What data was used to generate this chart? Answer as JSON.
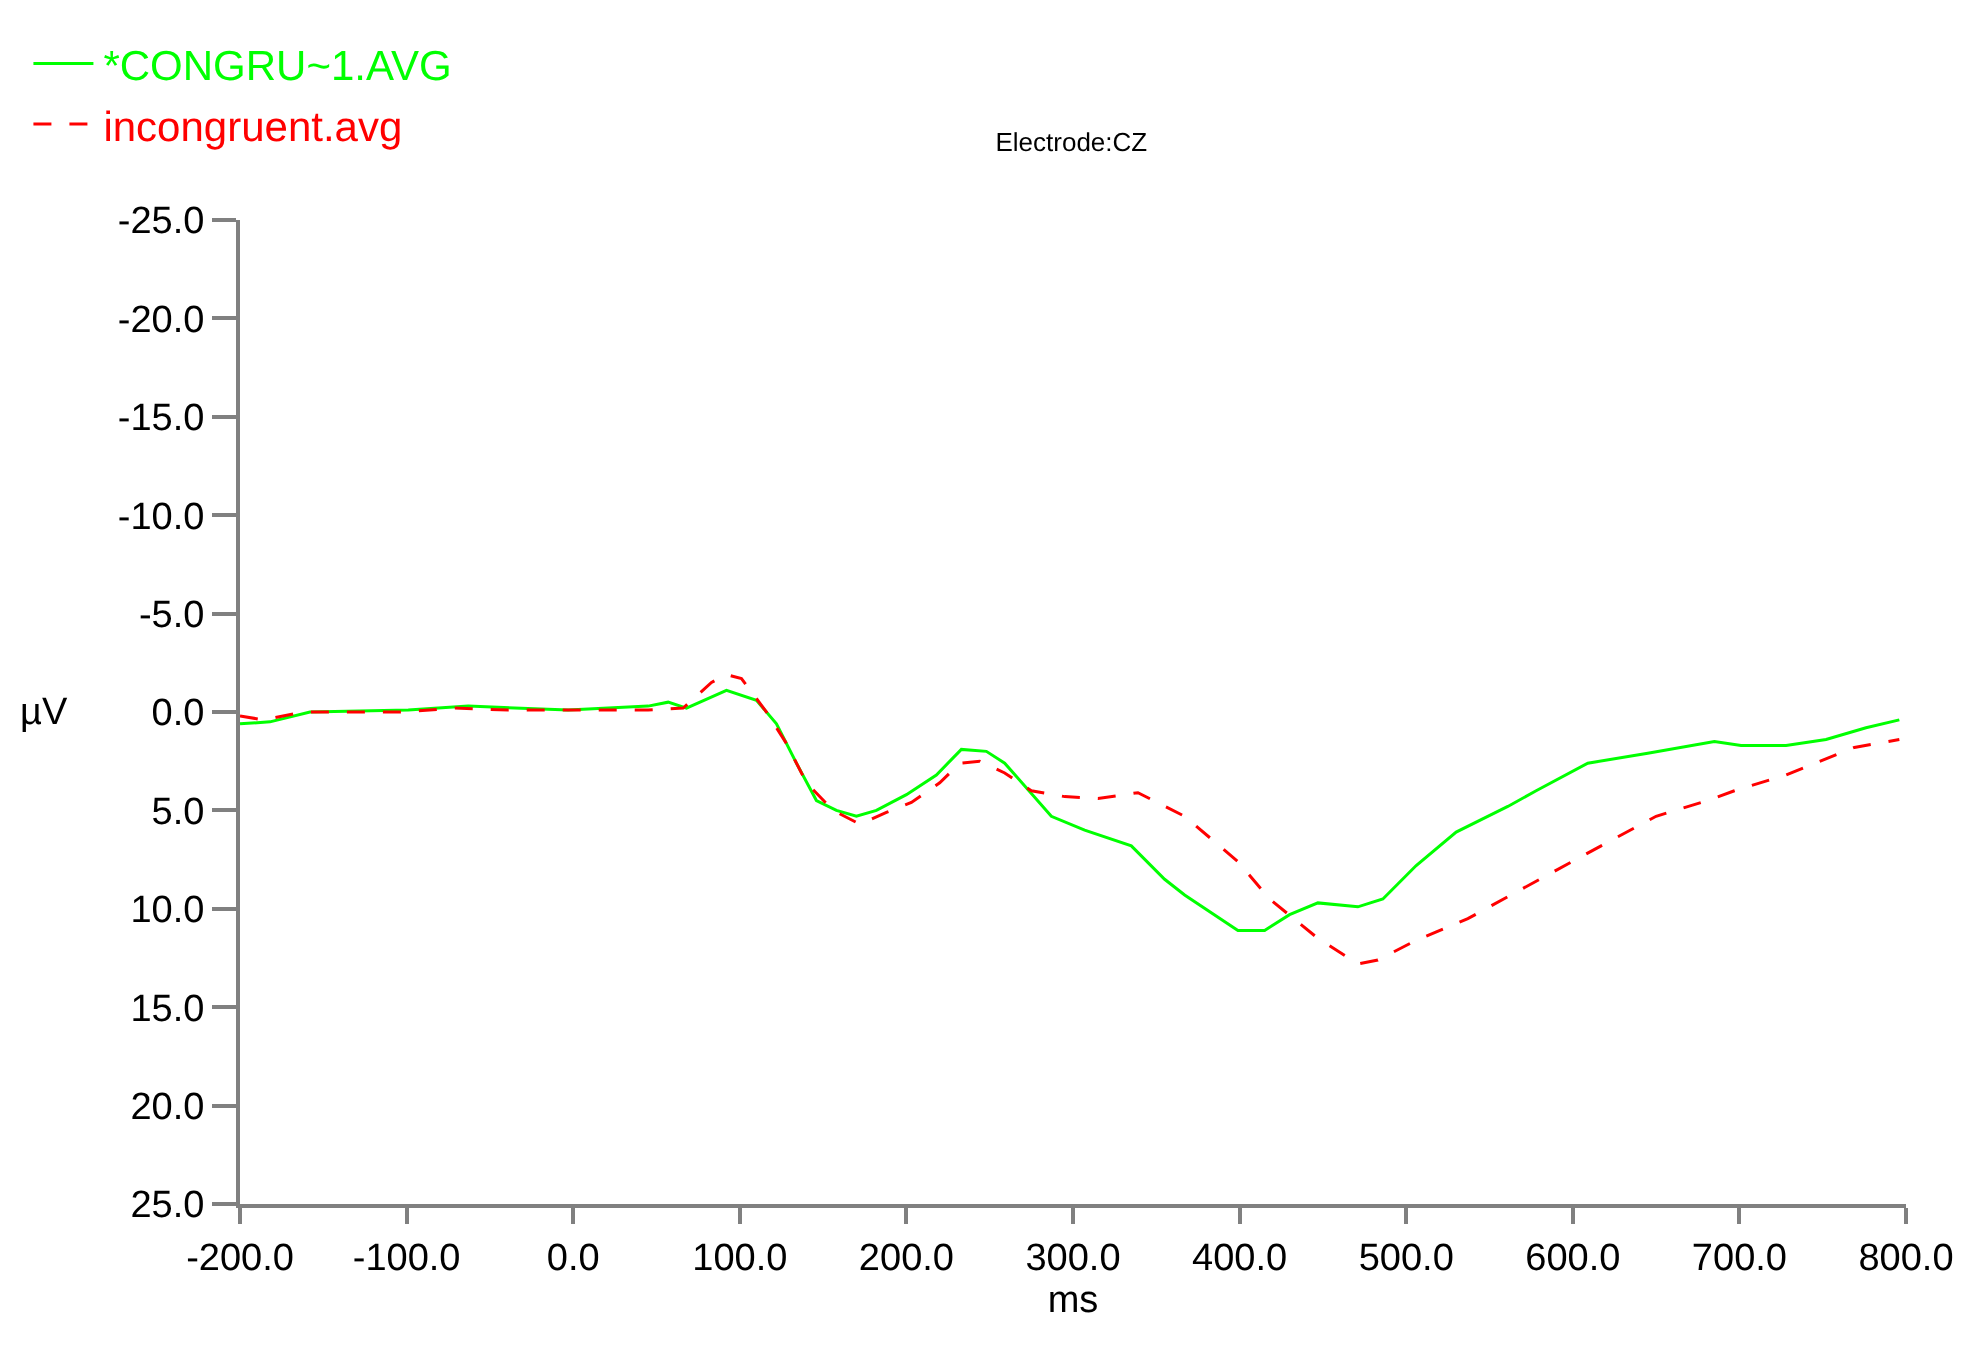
{
  "chart_data": {
    "type": "line",
    "title": "Electrode:CZ",
    "xlabel": "ms",
    "ylabel": "µV",
    "xlim": [
      -200,
      800
    ],
    "xticks": [
      {
        "value": -200,
        "label": "-200.0"
      },
      {
        "value": -100,
        "label": "-100.0"
      },
      {
        "value": 0,
        "label": "0.0"
      },
      {
        "value": 100,
        "label": "100.0"
      },
      {
        "value": 200,
        "label": "200.0"
      },
      {
        "value": 300,
        "label": "300.0"
      },
      {
        "value": 400,
        "label": "400.0"
      },
      {
        "value": 500,
        "label": "500.0"
      },
      {
        "value": 600,
        "label": "600.0"
      },
      {
        "value": 700,
        "label": "700.0"
      },
      {
        "value": 800,
        "label": "800.0"
      }
    ],
    "ylim": [
      25,
      -25
    ],
    "yticks": [
      {
        "value": -25,
        "label": "-25.0"
      },
      {
        "value": -20,
        "label": "-20.0"
      },
      {
        "value": -15,
        "label": "-15.0"
      },
      {
        "value": -10,
        "label": "-10.0"
      },
      {
        "value": -5,
        "label": "-5.0"
      },
      {
        "value": 0,
        "label": "0.0"
      },
      {
        "value": 5,
        "label": "5.0"
      },
      {
        "value": 10,
        "label": "10.0"
      },
      {
        "value": 15,
        "label": "15.0"
      },
      {
        "value": 20,
        "label": "20.0"
      },
      {
        "value": 25,
        "label": "25.0"
      }
    ],
    "grid": false,
    "legend": "top left",
    "marker": "none",
    "series": [
      {
        "name": "*CONGRU~1.AVG",
        "color": "#00ff00",
        "line_style": "solid",
        "x": [
          -200,
          -182,
          -158,
          -99,
          -63,
          -3,
          45,
          57,
          68,
          92,
          110,
          122,
          134,
          146,
          158,
          170,
          182,
          200,
          218,
          233,
          248,
          259,
          287,
          307,
          335,
          355,
          367,
          399,
          415,
          430,
          447,
          471,
          486,
          506,
          530,
          561,
          578,
          609,
          645,
          685,
          701,
          728,
          752,
          776,
          796
        ],
        "values": [
          0.6,
          0.5,
          0,
          -0.1,
          -0.3,
          -0.1,
          -0.3,
          -0.5,
          -0.2,
          -1.1,
          -0.6,
          0.6,
          2.6,
          4.5,
          5.0,
          5.3,
          5.0,
          4.2,
          3.2,
          1.9,
          2.0,
          2.6,
          5.3,
          6.0,
          6.8,
          8.5,
          9.3,
          11.1,
          11.1,
          10.3,
          9.7,
          9.9,
          9.5,
          7.8,
          6.1,
          4.8,
          4.0,
          2.6,
          2.1,
          1.5,
          1.7,
          1.7,
          1.4,
          0.8,
          0.4
        ]
      },
      {
        "name": "incongruent.avg",
        "color": "#ff0000",
        "line_style": "dashed",
        "x": [
          -200,
          -186,
          -162,
          -138,
          -102,
          -71,
          -39,
          45,
          66,
          83,
          92,
          101,
          116,
          128,
          140,
          156,
          172,
          188,
          203,
          220,
          232,
          244,
          259,
          275,
          295,
          315,
          339,
          367,
          399,
          418,
          447,
          471,
          483,
          506,
          537,
          578,
          617,
          650,
          681,
          697,
          728,
          769,
          796
        ],
        "values": [
          0.2,
          0.4,
          0,
          0,
          0,
          -0.2,
          -0.1,
          -0.1,
          -0.2,
          -1.5,
          -1.9,
          -1.7,
          0,
          1.6,
          3.6,
          5.0,
          5.7,
          5.1,
          4.6,
          3.6,
          2.6,
          2.5,
          3.1,
          4.0,
          4.3,
          4.4,
          4.1,
          5.3,
          7.6,
          9.5,
          11.5,
          12.8,
          12.6,
          11.6,
          10.5,
          8.6,
          6.8,
          5.3,
          4.5,
          4.0,
          3.2,
          1.8,
          1.4
        ]
      }
    ]
  }
}
